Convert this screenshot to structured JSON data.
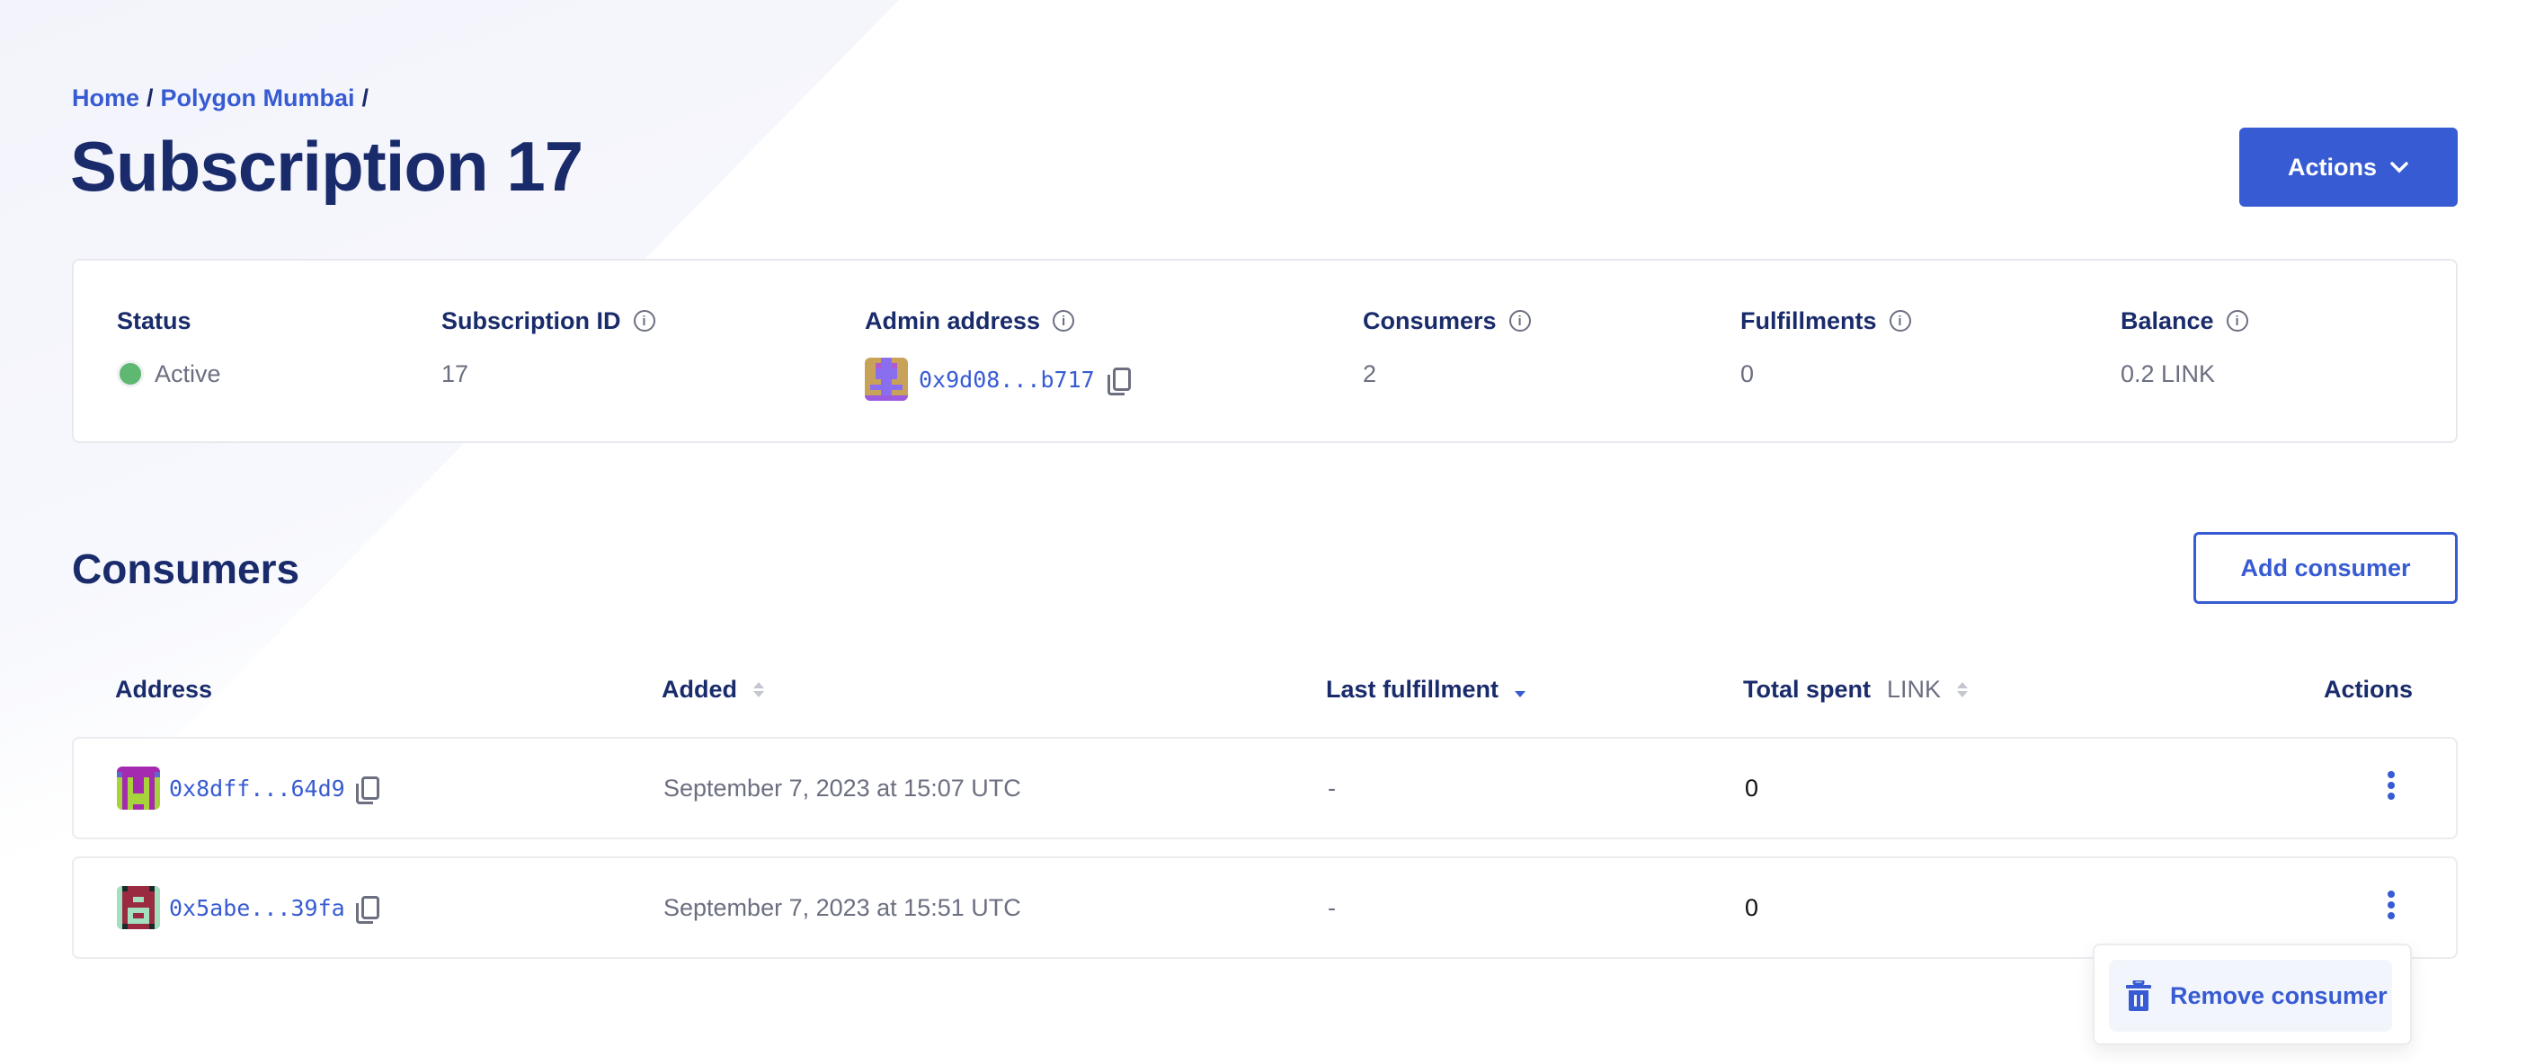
{
  "breadcrumb": {
    "items": [
      "Home",
      "Polygon Mumbai"
    ],
    "separator": "/"
  },
  "header": {
    "title": "Subscription 17",
    "actions_label": "Actions"
  },
  "summary": {
    "status": {
      "label": "Status",
      "value": "Active",
      "color": "#5fb871"
    },
    "subscription_id": {
      "label": "Subscription ID",
      "value": "17"
    },
    "admin_address": {
      "label": "Admin address",
      "value": "0x9d08...b717"
    },
    "consumers": {
      "label": "Consumers",
      "value": "2"
    },
    "fulfillments": {
      "label": "Fulfillments",
      "value": "0"
    },
    "balance": {
      "label": "Balance",
      "value": "0.2 LINK"
    }
  },
  "consumers": {
    "title": "Consumers",
    "add_label": "Add consumer",
    "columns": {
      "address": "Address",
      "added": "Added",
      "last_fulfillment": "Last fulfillment",
      "total_spent": "Total spent",
      "total_spent_unit": "LINK",
      "actions": "Actions"
    },
    "rows": [
      {
        "address": "0x8dff...64d9",
        "added": "September 7, 2023 at 15:07 UTC",
        "last_fulfillment": "-",
        "total_spent": "0"
      },
      {
        "address": "0x5abe...39fa",
        "added": "September 7, 2023 at 15:51 UTC",
        "last_fulfillment": "-",
        "total_spent": "0"
      }
    ],
    "menu": {
      "remove_label": "Remove consumer"
    }
  },
  "colors": {
    "accent": "#375bd2",
    "heading": "#1a2b6b"
  }
}
